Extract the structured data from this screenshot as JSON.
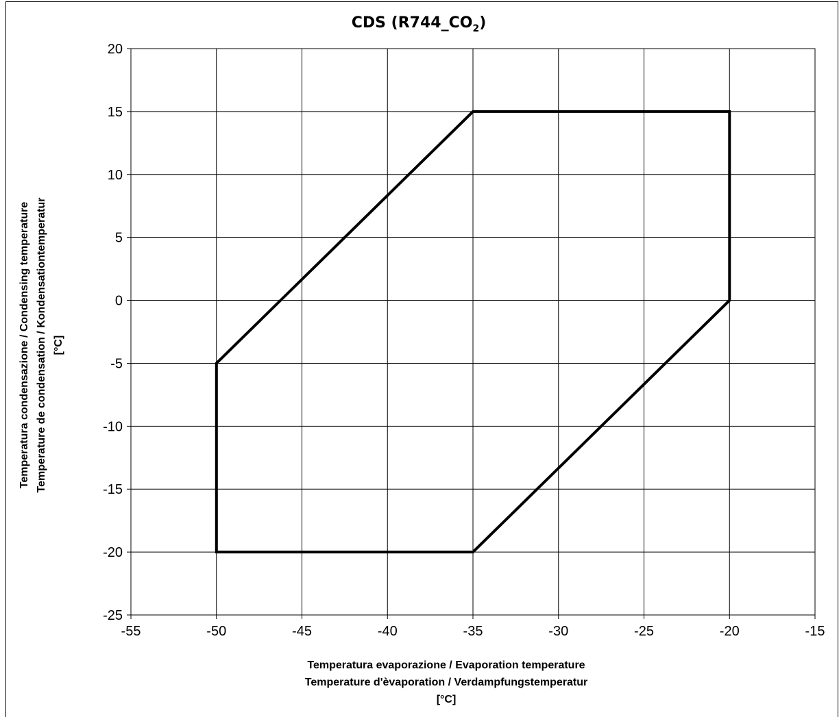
{
  "chart_data": {
    "type": "line",
    "title_main": "CDS (R744_CO",
    "title_sub": "2",
    "title_close": ")",
    "xlabel_lines": [
      "Temperatura evaporazione /  Evaporation temperature",
      "Temperature d'èvaporation / Verdampfungstemperatur",
      "[°C]"
    ],
    "ylabel_lines": [
      "Temperatura condensazione / Condensing temperature",
      "Temperature de condensation / Kondensationtemperatur",
      "[°C]"
    ],
    "xlim": [
      -55,
      -15
    ],
    "ylim": [
      -25,
      20
    ],
    "xticks": [
      -55,
      -50,
      -45,
      -40,
      -35,
      -30,
      -25,
      -20,
      -15
    ],
    "yticks": [
      20,
      15,
      10,
      5,
      0,
      -5,
      -10,
      -15,
      -20,
      -25
    ],
    "grid": true,
    "series": [
      {
        "closed": true,
        "color": "#000000",
        "x": [
          -50,
          -35,
          -20,
          -20,
          -35,
          -50
        ],
        "y": [
          -5,
          15,
          15,
          0,
          -20,
          -20
        ]
      }
    ]
  }
}
